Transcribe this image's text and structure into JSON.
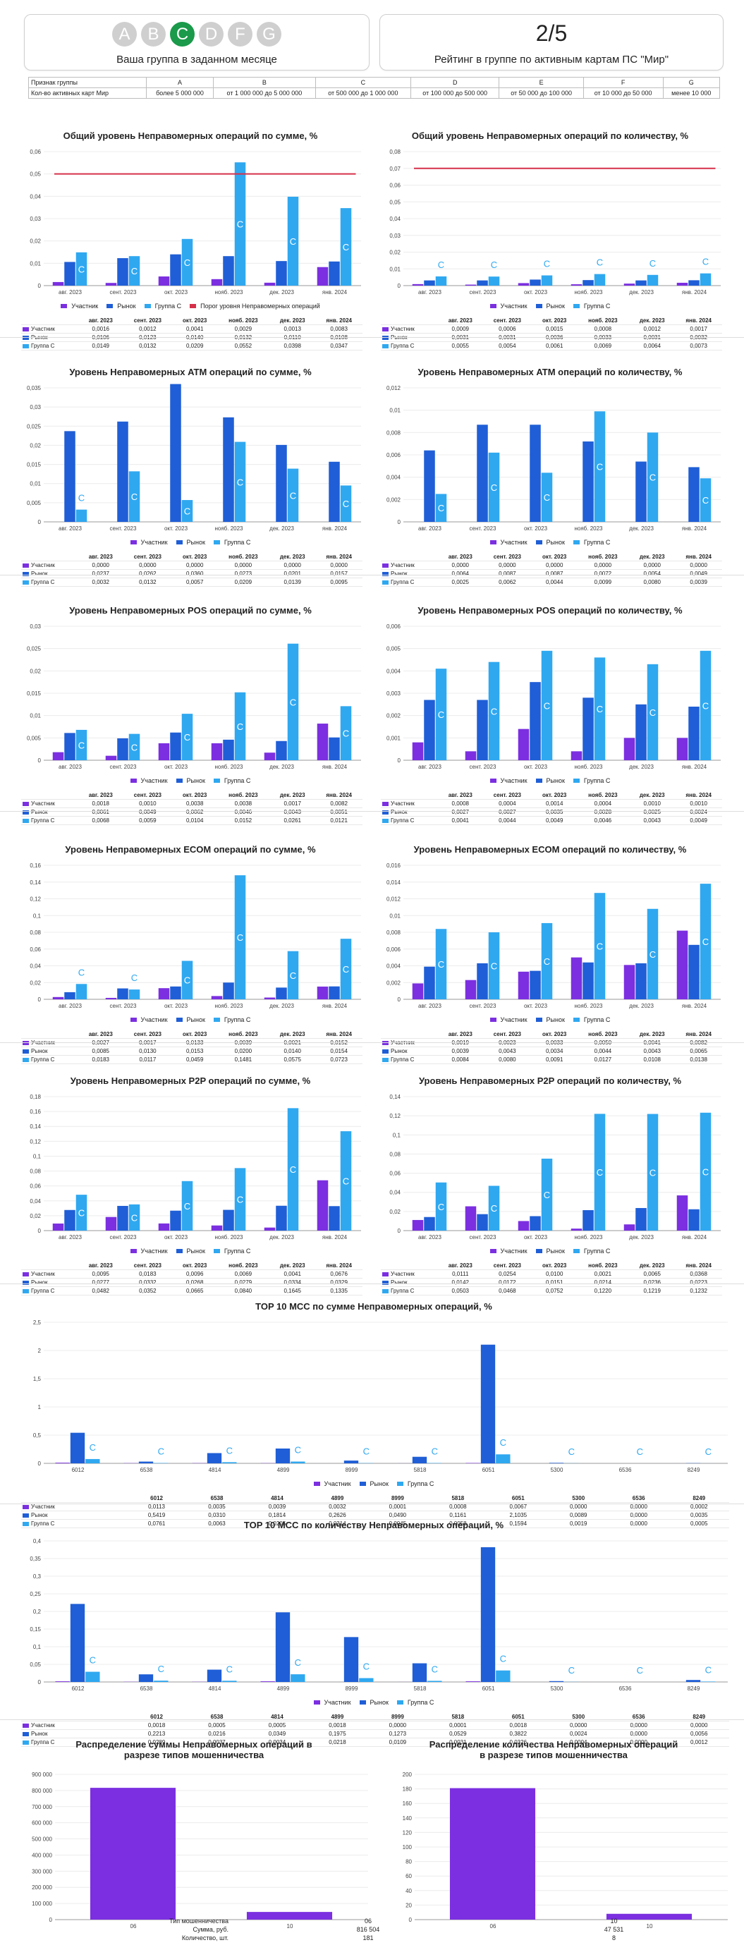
{
  "header": {
    "group_letters": [
      "A",
      "B",
      "C",
      "D",
      "F",
      "G"
    ],
    "active_group": "C",
    "group_caption": "Ваша группа в заданном месяце",
    "rating_value": "2/5",
    "rating_caption": "Рейтинг в группе по активным картам ПС \"Мир\"",
    "group_table": {
      "row1_label": "Признак группы",
      "row1": [
        "A",
        "B",
        "C",
        "D",
        "E",
        "F",
        "G"
      ],
      "row2_label": "Кол-во активных карт Мир",
      "row2": [
        "более 5 000 000",
        "от 1 000 000 до 5 000 000",
        "от 500 000 до 1 000 000",
        "от 100 000 до 500 000",
        "от 50 000 до 100 000",
        "от 10 000 до 50 000",
        "менее 10 000"
      ]
    }
  },
  "months": [
    "авг. 2023",
    "сент. 2023",
    "окт. 2023",
    "нояб. 2023",
    "дек. 2023",
    "янв. 2024"
  ],
  "series_names": [
    "Участник",
    "Рынок",
    "Группа C"
  ],
  "threshold_label": "Порог уровня Неправомерных операций",
  "colors": {
    "participant": "#7b2fe0",
    "market": "#1f5ed6",
    "group": "#2fa8f0",
    "threshold": "#d6304a",
    "active": "#1a9a4a"
  },
  "chart_data": [
    {
      "id": "c1",
      "type": "bar",
      "title": "Общий уровень Неправомерных операций по сумме, %",
      "ylim": [
        0,
        0.06
      ],
      "ticks": [
        0,
        0.01,
        0.02,
        0.03,
        0.04,
        0.05,
        0.06
      ],
      "threshold": 0.05,
      "series": [
        {
          "name": "Участник",
          "values": [
            0.0016,
            0.0012,
            0.0041,
            0.0029,
            0.0013,
            0.0083
          ]
        },
        {
          "name": "Рынок",
          "values": [
            0.0106,
            0.0123,
            0.014,
            0.0132,
            0.011,
            0.0108
          ]
        },
        {
          "name": "Группа C",
          "values": [
            0.0149,
            0.0132,
            0.0209,
            0.0552,
            0.0398,
            0.0347
          ]
        }
      ]
    },
    {
      "id": "c2",
      "type": "bar",
      "title": "Общий уровень Неправомерных операций по количеству, %",
      "ylim": [
        0,
        0.08
      ],
      "ticks": [
        0,
        0.01,
        0.02,
        0.03,
        0.04,
        0.05,
        0.06,
        0.07,
        0.08
      ],
      "threshold": 0.07,
      "series": [
        {
          "name": "Участник",
          "values": [
            0.0009,
            0.0006,
            0.0015,
            0.0008,
            0.0012,
            0.0017
          ]
        },
        {
          "name": "Рынок",
          "values": [
            0.0031,
            0.0031,
            0.0036,
            0.0033,
            0.0031,
            0.0032
          ]
        },
        {
          "name": "Группа C",
          "values": [
            0.0055,
            0.0054,
            0.0061,
            0.0069,
            0.0064,
            0.0073
          ]
        }
      ]
    },
    {
      "id": "c3",
      "type": "bar",
      "title": "Уровень Неправомерных ATM операций по сумме, %",
      "ylim": [
        0,
        0.035
      ],
      "ticks": [
        0,
        0.005,
        0.01,
        0.015,
        0.02,
        0.025,
        0.03,
        0.035
      ],
      "series": [
        {
          "name": "Участник",
          "values": [
            0,
            0,
            0,
            0,
            0,
            0
          ]
        },
        {
          "name": "Рынок",
          "values": [
            0.0237,
            0.0262,
            0.036,
            0.0273,
            0.0201,
            0.0157
          ]
        },
        {
          "name": "Группа C",
          "values": [
            0.0032,
            0.0132,
            0.0057,
            0.0209,
            0.0139,
            0.0095
          ]
        }
      ]
    },
    {
      "id": "c4",
      "type": "bar",
      "title": "Уровень Неправомерных ATM операций по количеству, %",
      "ylim": [
        0,
        0.012
      ],
      "ticks": [
        0,
        0.002,
        0.004,
        0.006,
        0.008,
        0.01,
        0.012
      ],
      "series": [
        {
          "name": "Участник",
          "values": [
            0,
            0,
            0,
            0,
            0,
            0
          ]
        },
        {
          "name": "Рынок",
          "values": [
            0.0064,
            0.0087,
            0.0087,
            0.0072,
            0.0054,
            0.0049
          ]
        },
        {
          "name": "Группа C",
          "values": [
            0.0025,
            0.0062,
            0.0044,
            0.0099,
            0.008,
            0.0039
          ]
        }
      ]
    },
    {
      "id": "c5",
      "type": "bar",
      "title": "Уровень Неправомерных POS операций по сумме, %",
      "ylim": [
        0,
        0.03
      ],
      "ticks": [
        0,
        0.005,
        0.01,
        0.015,
        0.02,
        0.025,
        0.03
      ],
      "series": [
        {
          "name": "Участник",
          "values": [
            0.0018,
            0.001,
            0.0038,
            0.0038,
            0.0017,
            0.0082
          ]
        },
        {
          "name": "Рынок",
          "values": [
            0.0061,
            0.0049,
            0.0062,
            0.0046,
            0.0043,
            0.0051
          ]
        },
        {
          "name": "Группа C",
          "values": [
            0.0068,
            0.0059,
            0.0104,
            0.0152,
            0.0261,
            0.0121
          ]
        }
      ]
    },
    {
      "id": "c6",
      "type": "bar",
      "title": "Уровень Неправомерных POS операций по количеству, %",
      "ylim": [
        0,
        0.006
      ],
      "ticks": [
        0,
        0.001,
        0.002,
        0.003,
        0.004,
        0.005,
        0.006
      ],
      "series": [
        {
          "name": "Участник",
          "values": [
            0.0008,
            0.0004,
            0.0014,
            0.0004,
            0.001,
            0.001
          ]
        },
        {
          "name": "Рынок",
          "values": [
            0.0027,
            0.0027,
            0.0035,
            0.0028,
            0.0025,
            0.0024
          ]
        },
        {
          "name": "Группа C",
          "values": [
            0.0041,
            0.0044,
            0.0049,
            0.0046,
            0.0043,
            0.0049
          ]
        }
      ]
    },
    {
      "id": "c7",
      "type": "bar",
      "title": "Уровень Неправомерных ECOM операций по сумме, %",
      "ylim": [
        0,
        0.16
      ],
      "ticks": [
        0,
        0.02,
        0.04,
        0.06,
        0.08,
        0.1,
        0.12,
        0.14,
        0.16
      ],
      "series": [
        {
          "name": "Участник",
          "values": [
            0.0027,
            0.0017,
            0.0133,
            0.0039,
            0.0021,
            0.0152
          ]
        },
        {
          "name": "Рынок",
          "values": [
            0.0085,
            0.013,
            0.0153,
            0.02,
            0.014,
            0.0154
          ]
        },
        {
          "name": "Группа C",
          "values": [
            0.0183,
            0.0117,
            0.0459,
            0.1481,
            0.0575,
            0.0723
          ]
        }
      ]
    },
    {
      "id": "c8",
      "type": "bar",
      "title": "Уровень Неправомерных ECOM операций по количеству, %",
      "ylim": [
        0,
        0.016
      ],
      "ticks": [
        0,
        0.002,
        0.004,
        0.006,
        0.008,
        0.01,
        0.012,
        0.014,
        0.016
      ],
      "series": [
        {
          "name": "Участник",
          "values": [
            0.0019,
            0.0023,
            0.0033,
            0.005,
            0.0041,
            0.0082
          ]
        },
        {
          "name": "Рынок",
          "values": [
            0.0039,
            0.0043,
            0.0034,
            0.0044,
            0.0043,
            0.0065
          ]
        },
        {
          "name": "Группа C",
          "values": [
            0.0084,
            0.008,
            0.0091,
            0.0127,
            0.0108,
            0.0138
          ]
        }
      ]
    },
    {
      "id": "c9",
      "type": "bar",
      "title": "Уровень Неправомерных P2P операций по сумме, %",
      "ylim": [
        0,
        0.18
      ],
      "ticks": [
        0,
        0.02,
        0.04,
        0.06,
        0.08,
        0.1,
        0.12,
        0.14,
        0.16,
        0.18
      ],
      "series": [
        {
          "name": "Участник",
          "values": [
            0.0095,
            0.0183,
            0.0096,
            0.0069,
            0.0041,
            0.0676
          ]
        },
        {
          "name": "Рынок",
          "values": [
            0.0277,
            0.0332,
            0.0268,
            0.0279,
            0.0334,
            0.0329
          ]
        },
        {
          "name": "Группа C",
          "values": [
            0.0482,
            0.0352,
            0.0665,
            0.084,
            0.1645,
            0.1335
          ]
        }
      ]
    },
    {
      "id": "c10",
      "type": "bar",
      "title": "Уровень Неправомерных P2P операций по количеству, %",
      "ylim": [
        0,
        0.14
      ],
      "ticks": [
        0,
        0.02,
        0.04,
        0.06,
        0.08,
        0.1,
        0.12,
        0.14
      ],
      "series": [
        {
          "name": "Участник",
          "values": [
            0.0111,
            0.0254,
            0.01,
            0.0021,
            0.0065,
            0.0368
          ]
        },
        {
          "name": "Рынок",
          "values": [
            0.0142,
            0.0172,
            0.0151,
            0.0214,
            0.0236,
            0.0223
          ]
        },
        {
          "name": "Группа C",
          "values": [
            0.0503,
            0.0468,
            0.0752,
            0.122,
            0.1219,
            0.1232
          ]
        }
      ]
    },
    {
      "id": "c11",
      "type": "bar",
      "title": "TOP 10 MCC по сумме Неправомерных операций, %",
      "categories": [
        "6012",
        "6538",
        "4814",
        "4899",
        "8999",
        "5818",
        "6051",
        "5300",
        "6536",
        "8249"
      ],
      "ylim": [
        0,
        2.5
      ],
      "ticks": [
        0,
        0.5,
        1,
        1.5,
        2,
        2.5
      ],
      "series": [
        {
          "name": "Участник",
          "values": [
            0.0113,
            0.0035,
            0.0039,
            0.0032,
            0.0001,
            0.0008,
            0.0067,
            0.0,
            0.0,
            0.0002
          ]
        },
        {
          "name": "Рынок",
          "values": [
            0.5419,
            0.031,
            0.1814,
            0.2626,
            0.049,
            0.1161,
            2.1035,
            0.0089,
            0.0,
            0.0035
          ]
        },
        {
          "name": "Группа C",
          "values": [
            0.0761,
            0.0063,
            0.0205,
            0.0314,
            0.0045,
            0.0058,
            0.1594,
            0.0019,
            0.0,
            0.0005
          ]
        }
      ]
    },
    {
      "id": "c12",
      "type": "bar",
      "title": "TOP 10 MCC по количеству Неправомерных операций, %",
      "categories": [
        "6012",
        "6538",
        "4814",
        "4899",
        "8999",
        "5818",
        "6051",
        "5300",
        "6536",
        "8249"
      ],
      "ylim": [
        0,
        0.4
      ],
      "ticks": [
        0,
        0.05,
        0.1,
        0.15,
        0.2,
        0.25,
        0.3,
        0.35,
        0.4
      ],
      "series": [
        {
          "name": "Участник",
          "values": [
            0.0018,
            0.0005,
            0.0005,
            0.0018,
            0.0,
            0.0001,
            0.0018,
            0.0,
            0.0,
            0.0
          ]
        },
        {
          "name": "Рынок",
          "values": [
            0.2213,
            0.0216,
            0.0349,
            0.1975,
            0.1273,
            0.0529,
            0.3822,
            0.0024,
            0.0,
            0.0056
          ]
        },
        {
          "name": "Группа C",
          "values": [
            0.0289,
            0.0037,
            0.0034,
            0.0218,
            0.0109,
            0.0031,
            0.0326,
            0.0004,
            0.0,
            0.0012
          ]
        }
      ]
    },
    {
      "id": "c13",
      "type": "bar",
      "title": "Распределение суммы Неправомерных операций в разрезе типов мошенничества",
      "categories": [
        "06",
        "10"
      ],
      "ylim": [
        0,
        900000
      ],
      "ticks": [
        0,
        100000,
        200000,
        300000,
        400000,
        500000,
        600000,
        700000,
        800000,
        900000
      ],
      "tick_labels": [
        "0",
        "100 000",
        "200 000",
        "300 000",
        "400 000",
        "500 000",
        "600 000",
        "700 000",
        "800 000",
        "900 000"
      ],
      "series": [
        {
          "name": "Сумма, руб.",
          "values": [
            816504,
            47531
          ]
        }
      ]
    },
    {
      "id": "c14",
      "type": "bar",
      "title": "Распределение количества Неправомерных операций в разрезе типов мошенничества",
      "categories": [
        "06",
        "10"
      ],
      "ylim": [
        0,
        200
      ],
      "ticks": [
        0,
        20,
        40,
        60,
        80,
        100,
        120,
        140,
        160,
        180,
        200
      ],
      "series": [
        {
          "name": "Количество, шт.",
          "values": [
            181,
            8
          ]
        }
      ]
    }
  ],
  "fraud_table": {
    "row_labels": [
      "Тип мошенничества",
      "Сумма, руб.",
      "Количество, шт."
    ],
    "col_06": [
      "06",
      "816 504",
      "181"
    ],
    "col_10": [
      "10",
      "47 531",
      "8"
    ]
  }
}
